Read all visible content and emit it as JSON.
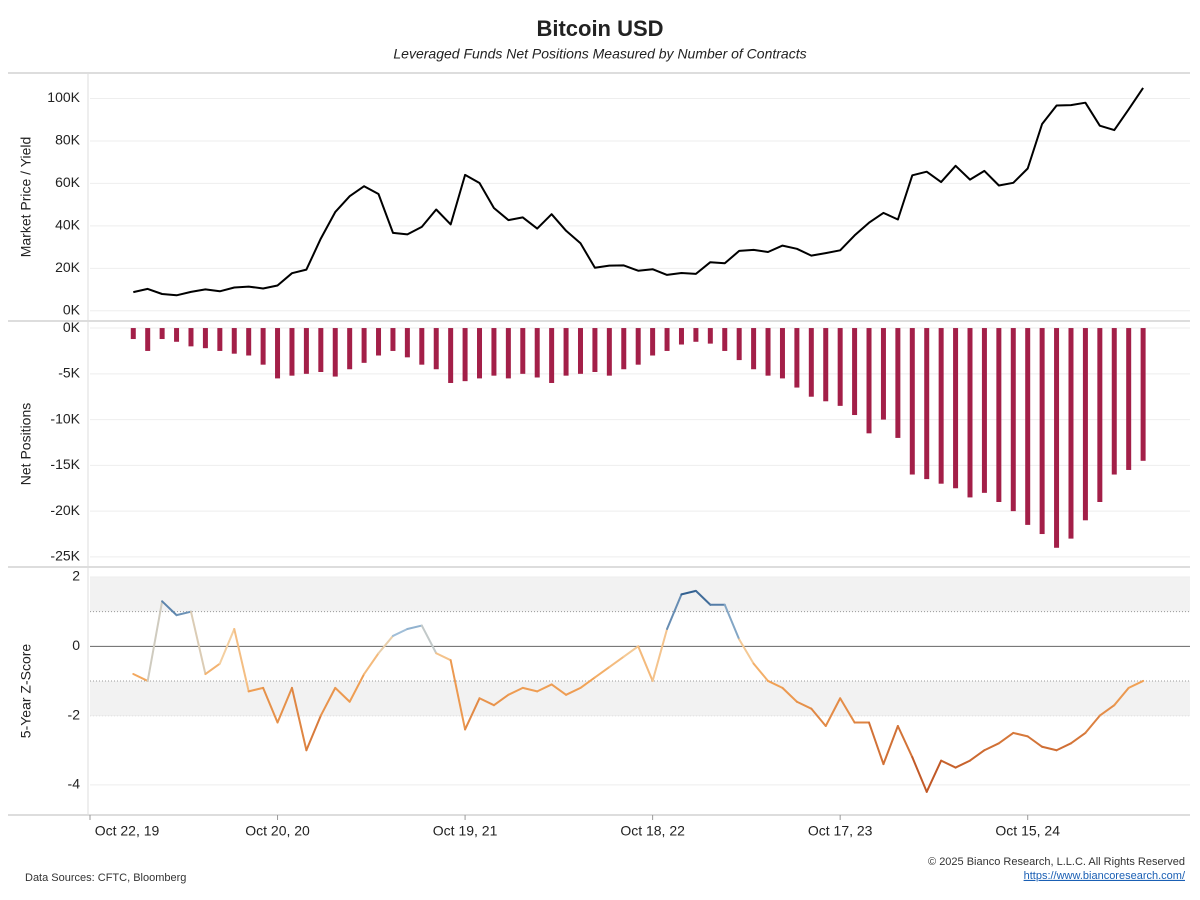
{
  "chart_data": {
    "title": "Bitcoin USD",
    "subtitle": "Leveraged Funds Net Positions Measured by Number of Contracts",
    "x": [
      "2020-01-14",
      "2020-02-11",
      "2020-03-10",
      "2020-04-07",
      "2020-05-05",
      "2020-06-02",
      "2020-06-30",
      "2020-07-28",
      "2020-08-25",
      "2020-09-22",
      "2020-10-20",
      "2020-11-17",
      "2020-12-15",
      "2021-01-12",
      "2021-02-09",
      "2021-03-09",
      "2021-04-06",
      "2021-05-04",
      "2021-06-01",
      "2021-06-29",
      "2021-07-27",
      "2021-08-24",
      "2021-09-21",
      "2021-10-19",
      "2021-11-16",
      "2021-12-14",
      "2022-01-11",
      "2022-02-08",
      "2022-03-08",
      "2022-04-05",
      "2022-05-03",
      "2022-05-31",
      "2022-06-28",
      "2022-07-26",
      "2022-08-23",
      "2022-09-20",
      "2022-10-18",
      "2022-11-15",
      "2022-12-13",
      "2023-01-10",
      "2023-02-07",
      "2023-03-07",
      "2023-04-04",
      "2023-05-02",
      "2023-05-30",
      "2023-06-27",
      "2023-07-25",
      "2023-08-22",
      "2023-09-19",
      "2023-10-17",
      "2023-11-14",
      "2023-12-12",
      "2024-01-09",
      "2024-02-06",
      "2024-03-05",
      "2024-04-02",
      "2024-04-30",
      "2024-05-28",
      "2024-06-25",
      "2024-07-23",
      "2024-08-20",
      "2024-09-17",
      "2024-10-15",
      "2024-11-12",
      "2024-12-10",
      "2025-01-07",
      "2025-02-04",
      "2025-03-04",
      "2025-04-01",
      "2025-04-29",
      "2025-05-27"
    ],
    "xlim": [
      "2019-10-22",
      "2025-08-26"
    ],
    "xticks": [
      {
        "value": "2019-10-22",
        "label": "Oct 22, 19"
      },
      {
        "value": "2020-10-20",
        "label": "Oct 20, 20"
      },
      {
        "value": "2021-10-19",
        "label": "Oct 19, 21"
      },
      {
        "value": "2022-10-18",
        "label": "Oct 18, 22"
      },
      {
        "value": "2023-10-17",
        "label": "Oct 17, 23"
      },
      {
        "value": "2024-10-15",
        "label": "Oct 15, 24"
      }
    ],
    "panels": [
      {
        "type": "line",
        "ylabel": "Market Price / Yield",
        "ylim": [
          -4800,
          112000
        ],
        "yticks": [
          {
            "value": 0,
            "label": "0K"
          },
          {
            "value": 20000,
            "label": "20K"
          },
          {
            "value": 40000,
            "label": "40K"
          },
          {
            "value": 60000,
            "label": "60K"
          },
          {
            "value": 80000,
            "label": "80K"
          },
          {
            "value": 100000,
            "label": "100K"
          }
        ],
        "series": [
          {
            "color": "#000000",
            "values": [
              8800,
              10300,
              7900,
              7300,
              8900,
              10100,
              9200,
              11000,
              11400,
              10500,
              11900,
              17700,
              19400,
              34000,
              46500,
              54000,
              58700,
              55000,
              36700,
              36000,
              39500,
              47700,
              40700,
              64000,
              60200,
              48400,
              42700,
              44000,
              38700,
              45500,
              37700,
              31800,
              20300,
              21300,
              21400,
              18900,
              19600,
              16900,
              17800,
              17400,
              22900,
              22400,
              28200,
              28700,
              27700,
              30700,
              29200,
              26000,
              27200,
              28500,
              35500,
              41500,
              46100,
              43000,
              63800,
              65500,
              60600,
              68300,
              61800,
              65900,
              59000,
              60300,
              67000,
              88000,
              96700,
              96900,
              98000,
              87200,
              85100,
              94900,
              105000
            ]
          }
        ]
      },
      {
        "type": "bar",
        "ylabel": "Net Positions",
        "ylim": [
          -26100,
          770
        ],
        "yticks": [
          {
            "value": 0,
            "label": "0K"
          },
          {
            "value": -5000,
            "label": "-5K"
          },
          {
            "value": -10000,
            "label": "-10K"
          },
          {
            "value": -15000,
            "label": "-15K"
          },
          {
            "value": -20000,
            "label": "-20K"
          },
          {
            "value": -25000,
            "label": "-25K"
          }
        ],
        "series": [
          {
            "color": "#a31f48",
            "values": [
              -1200,
              -2500,
              -1200,
              -1500,
              -2000,
              -2200,
              -2500,
              -2800,
              -3000,
              -4000,
              -5500,
              -5200,
              -5000,
              -4800,
              -5300,
              -4500,
              -3800,
              -3000,
              -2500,
              -3200,
              -4000,
              -4500,
              -6000,
              -5800,
              -5500,
              -5200,
              -5500,
              -5000,
              -5400,
              -6000,
              -5200,
              -5000,
              -4800,
              -5200,
              -4500,
              -4000,
              -3000,
              -2500,
              -1800,
              -1500,
              -1700,
              -2500,
              -3500,
              -4500,
              -5200,
              -5500,
              -6500,
              -7500,
              -8000,
              -8500,
              -9500,
              -11500,
              -10000,
              -12000,
              -16000,
              -16500,
              -17000,
              -17500,
              -18500,
              -18000,
              -19000,
              -20000,
              -21500,
              -22500,
              -24000,
              -23000,
              -21000,
              -19000,
              -16000,
              -15500,
              -14500
            ]
          }
        ]
      },
      {
        "type": "line",
        "ylabel": "5-Year Z-Score",
        "ylim": [
          -4.87,
          2.29
        ],
        "yticks": [
          2,
          0,
          -2,
          -4
        ],
        "bands": [
          [
            1,
            2
          ],
          [
            -2,
            -1
          ]
        ],
        "band_color": "#f2f2f2",
        "color_stops": [
          {
            "value": 1.6,
            "color": "#2e5d8e"
          },
          {
            "value": 0.3,
            "color": "#a9c6de"
          },
          {
            "value": 0,
            "color": "#f4cfa0"
          },
          {
            "value": -1,
            "color": "#f3a457"
          },
          {
            "value": -4.4,
            "color": "#b5461a"
          }
        ],
        "series": [
          {
            "values": [
              -0.8,
              -1.0,
              1.3,
              0.9,
              1.0,
              -0.8,
              -0.5,
              0.5,
              -1.3,
              -1.2,
              -2.2,
              -1.2,
              -3.0,
              -2.0,
              -1.2,
              -1.6,
              -0.8,
              -0.2,
              0.3,
              0.5,
              0.6,
              -0.2,
              -0.4,
              -2.4,
              -1.5,
              -1.7,
              -1.4,
              -1.2,
              -1.3,
              -1.1,
              -1.4,
              -1.2,
              -0.9,
              -0.6,
              -0.3,
              0.0,
              -1.0,
              0.5,
              1.5,
              1.6,
              1.2,
              1.2,
              0.2,
              -0.5,
              -1.0,
              -1.2,
              -1.6,
              -1.8,
              -2.3,
              -1.5,
              -2.2,
              -2.2,
              -3.4,
              -2.3,
              -3.2,
              -4.2,
              -3.3,
              -3.5,
              -3.3,
              -3.0,
              -2.8,
              -2.5,
              -2.6,
              -2.9,
              -3.0,
              -2.8,
              -2.5,
              -2.0,
              -1.7,
              -1.2,
              -1.0
            ]
          }
        ]
      }
    ],
    "source": "Data Sources: CFTC, Bloomberg",
    "copyright": "© 2025 Bianco Research, L.L.C. All Rights Reserved",
    "url": "https://www.biancoresearch.com/"
  }
}
